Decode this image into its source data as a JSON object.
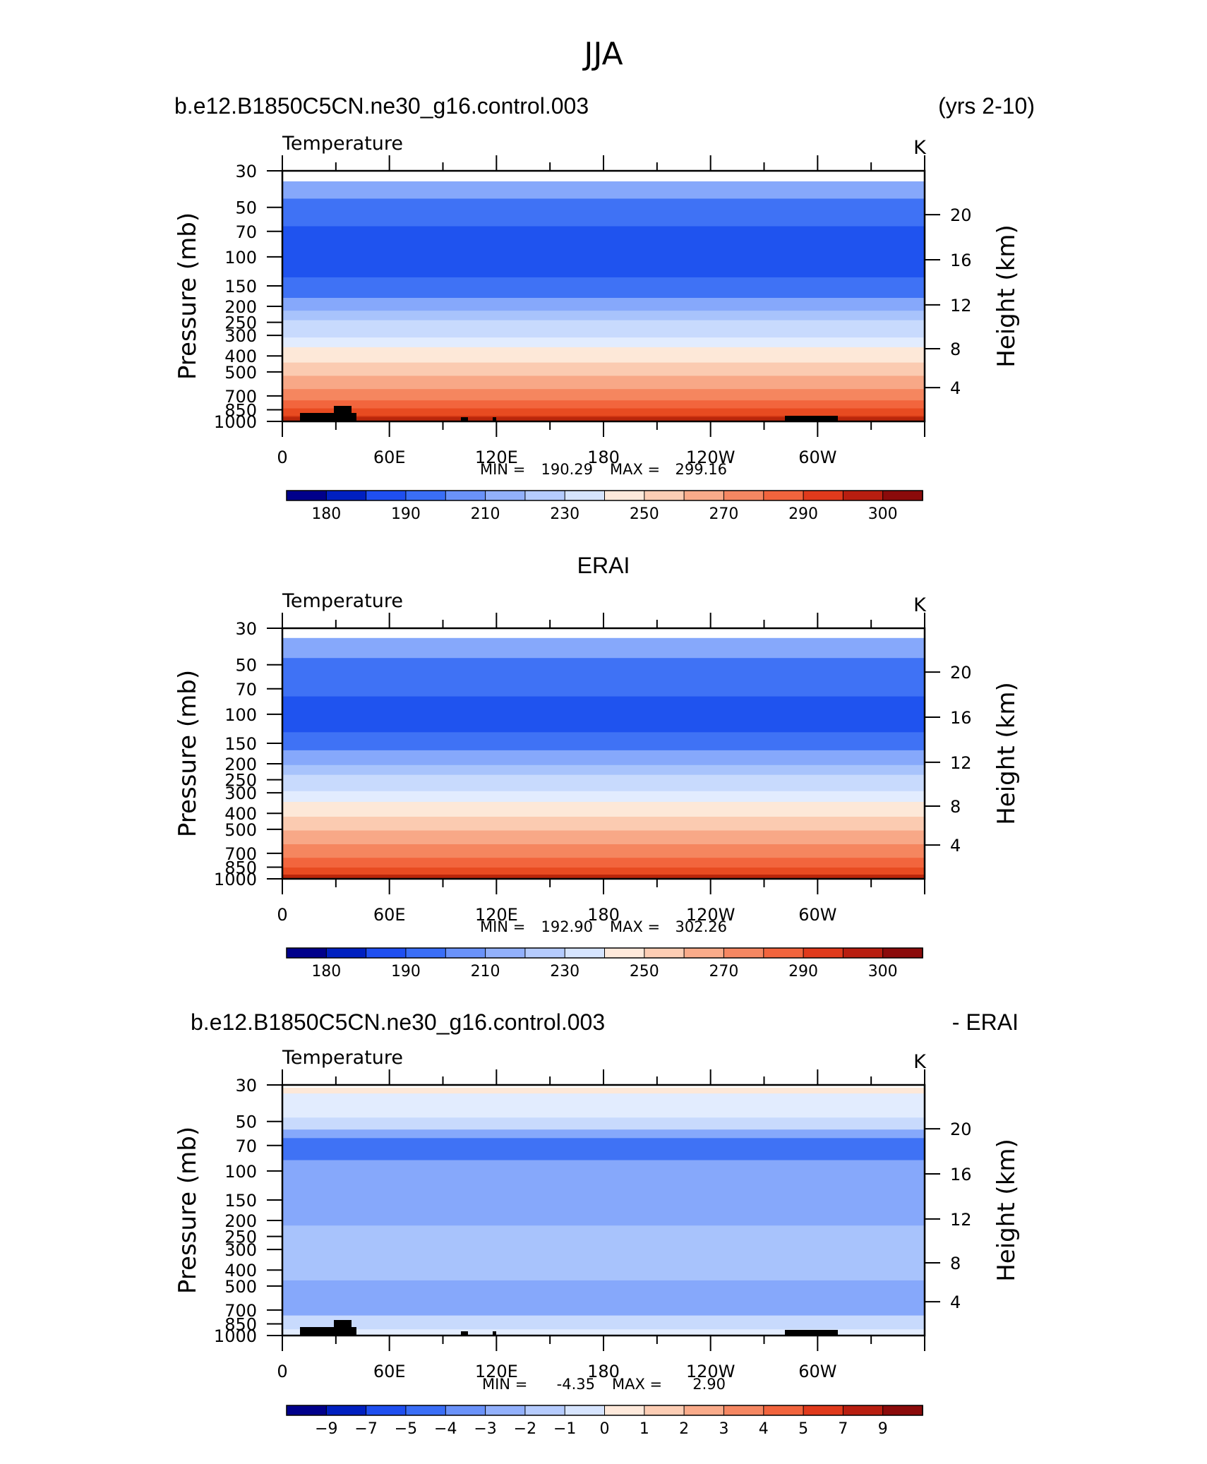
{
  "title": "JJA",
  "panels": [
    {
      "id": "model",
      "header_left": "b.e12.B1850C5CN.ne30_g16.control.003",
      "header_center": "",
      "header_right": "(yrs 2-10)",
      "variable": "Temperature",
      "units": "K",
      "min_label": "MIN =",
      "min_value": "190.29",
      "max_label": "MAX =",
      "max_value": "299.16",
      "colorbar_labels": [
        "180",
        "190",
        "210",
        "230",
        "250",
        "270",
        "290",
        "300"
      ],
      "band_colors": [
        "#ffffff",
        "#86a8fb",
        "#3f72f5",
        "#1f53ef",
        "#3f72f5",
        "#86a8fb",
        "#a8c3fc",
        "#c8dafd",
        "#e2ecfe",
        "#fde8d8",
        "#fbcbb1",
        "#f8a887",
        "#f5865f",
        "#f2653d",
        "#e84b21",
        "#cf3412"
      ],
      "band_breaks": [
        0.0,
        0.042,
        0.111,
        0.221,
        0.425,
        0.507,
        0.558,
        0.596,
        0.665,
        0.704,
        0.765,
        0.818,
        0.871,
        0.916,
        0.948,
        0.978,
        1.0
      ],
      "topography": true
    },
    {
      "id": "obs",
      "header_left": "",
      "header_center": "ERAI",
      "header_right": "",
      "variable": "Temperature",
      "units": "K",
      "min_label": "MIN =",
      "min_value": "192.90",
      "max_label": "MAX =",
      "max_value": "302.26",
      "colorbar_labels": [
        "180",
        "190",
        "210",
        "230",
        "250",
        "270",
        "290",
        "300"
      ],
      "band_colors": [
        "#ffffff",
        "#86a8fb",
        "#3f72f5",
        "#1f53ef",
        "#3f72f5",
        "#86a8fb",
        "#a8c3fc",
        "#c8dafd",
        "#e2ecfe",
        "#fde8d8",
        "#fbcbb1",
        "#f8a887",
        "#f5865f",
        "#f2653d",
        "#e84b21",
        "#cf3412"
      ],
      "band_breaks": [
        0.0,
        0.039,
        0.119,
        0.272,
        0.415,
        0.487,
        0.546,
        0.585,
        0.65,
        0.693,
        0.752,
        0.807,
        0.862,
        0.916,
        0.955,
        0.985,
        1.0
      ],
      "topography": false
    },
    {
      "id": "diff",
      "header_left": "b.e12.B1850C5CN.ne30_g16.control.003",
      "header_center": "",
      "header_right": "- ERAI",
      "variable": "Temperature",
      "units": "K",
      "min_label": "MIN =",
      "min_value": "-4.35",
      "max_label": "MAX =",
      "max_value": "2.90",
      "colorbar_labels": [
        "-9",
        "-7",
        "-5",
        "-4",
        "-3",
        "-2",
        "-1",
        "0",
        "1",
        "2",
        "3",
        "4",
        "5",
        "7",
        "9"
      ],
      "band_colors": [
        "#ffffff",
        "#fde8d8",
        "#e2ecfe",
        "#c8dafd",
        "#86a8fb",
        "#3f72f5",
        "#86a8fb",
        "#a8c3fc",
        "#86a8fb",
        "#c8dafd",
        "#e2ecfe"
      ],
      "band_breaks": [
        0.0,
        0.011,
        0.034,
        0.13,
        0.178,
        0.212,
        0.3,
        0.561,
        0.78,
        0.92,
        0.975,
        1.0
      ],
      "topography": true
    }
  ],
  "axes": {
    "y_left_label": "Pressure (mb)",
    "y_right_label": "Height (km)",
    "pressure_ticks": [
      "30",
      "50",
      "70",
      "100",
      "150",
      "200",
      "250",
      "300",
      "400",
      "500",
      "700",
      "850",
      "1000"
    ],
    "height_ticks": [
      "20",
      "16",
      "12",
      "8",
      "4"
    ],
    "lon_ticks": [
      "0",
      "60E",
      "120E",
      "180",
      "120W",
      "60W"
    ]
  },
  "colors": {
    "colorbar": [
      "#00008b",
      "#0020c0",
      "#1f4ff0",
      "#3a6ef6",
      "#6a92f9",
      "#92b0fb",
      "#b5cbfd",
      "#d6e4fe",
      "#fee9db",
      "#fccdb4",
      "#f9ab8a",
      "#f58762",
      "#f1643d",
      "#e03a1c",
      "#b81e10",
      "#8b0b0b"
    ],
    "topography": "#000000"
  }
}
